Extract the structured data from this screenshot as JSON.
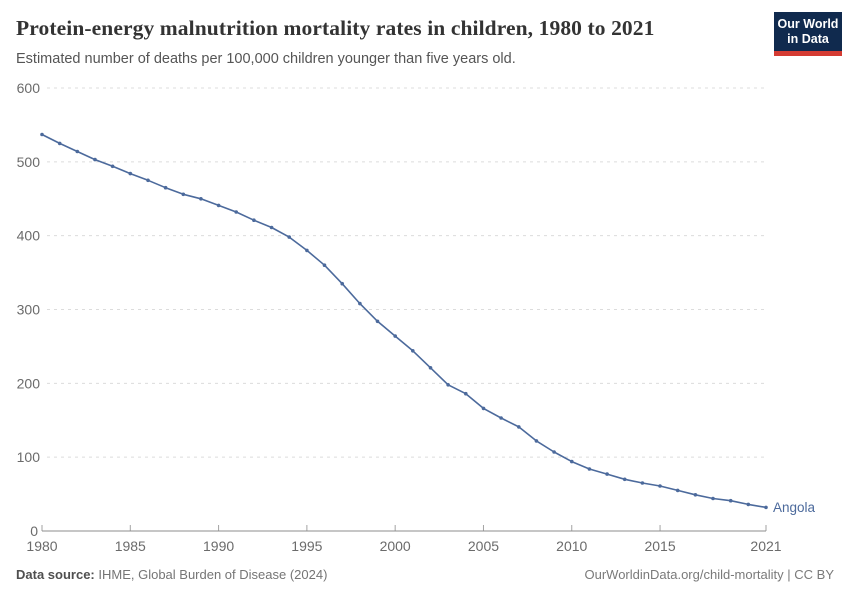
{
  "chart_data": {
    "type": "line",
    "title": "Protein-energy malnutrition mortality rates in children, 1980 to 2021",
    "subtitle": "Estimated number of deaths per 100,000 children younger than five years old.",
    "xlabel": "",
    "ylabel": "",
    "xlim": [
      1980,
      2021
    ],
    "ylim": [
      0,
      600
    ],
    "grid": "horizontal-dashed",
    "legend": "end-of-line-label",
    "x_ticks": [
      1980,
      1985,
      1990,
      1995,
      2000,
      2005,
      2010,
      2015,
      2021
    ],
    "y_ticks": [
      0,
      100,
      200,
      300,
      400,
      500,
      600
    ],
    "x": [
      1980,
      1981,
      1982,
      1983,
      1984,
      1985,
      1986,
      1987,
      1988,
      1989,
      1990,
      1991,
      1992,
      1993,
      1994,
      1995,
      1996,
      1997,
      1998,
      1999,
      2000,
      2001,
      2002,
      2003,
      2004,
      2005,
      2006,
      2007,
      2008,
      2009,
      2010,
      2011,
      2012,
      2013,
      2014,
      2015,
      2016,
      2017,
      2018,
      2019,
      2020,
      2021
    ],
    "series": [
      {
        "name": "Angola",
        "color": "#4c6a9c",
        "values": [
          537,
          525,
          514,
          503,
          494,
          484,
          475,
          465,
          456,
          450,
          441,
          432,
          421,
          411,
          398,
          380,
          360,
          335,
          308,
          284,
          264,
          244,
          221,
          198,
          186,
          166,
          153,
          141,
          122,
          107,
          94,
          84,
          77,
          70,
          65,
          61,
          55,
          49,
          44,
          41,
          36,
          32
        ]
      }
    ]
  },
  "branding": {
    "logo_line1": "Our World",
    "logo_line2": "in Data"
  },
  "footer": {
    "source_label": "Data source:",
    "source_value": " IHME, Global Burden of Disease (2024)",
    "credit": "OurWorldinData.org/child-mortality | CC BY"
  },
  "colors": {
    "series_line": "#4c6a9c",
    "logo_background": "#102a4e",
    "logo_stripe": "#d43b32",
    "gridline": "#dcdcdc",
    "axis_line": "#8c8c8c",
    "tick_label": "#6b6b6b",
    "title_text": "#333333",
    "subtitle_text": "#555555"
  }
}
